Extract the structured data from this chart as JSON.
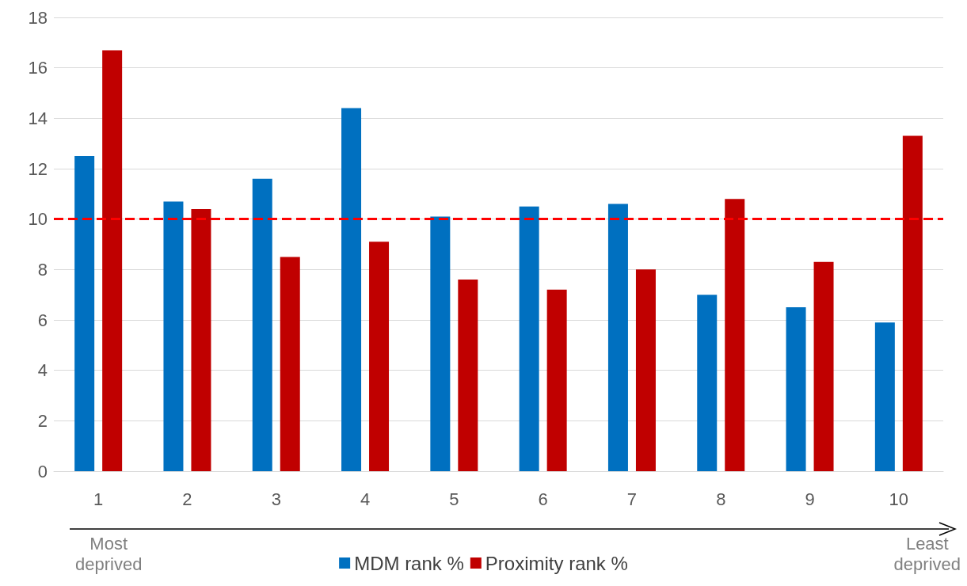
{
  "chart_data": {
    "type": "bar",
    "categories": [
      "1",
      "2",
      "3",
      "4",
      "5",
      "6",
      "7",
      "8",
      "9",
      "10"
    ],
    "series": [
      {
        "name": "MDM rank %",
        "color": "#0070c0",
        "values": [
          12.5,
          10.7,
          11.6,
          14.4,
          10.1,
          10.5,
          10.6,
          7.0,
          6.5,
          5.9
        ]
      },
      {
        "name": "Proximity rank %",
        "color": "#c00000",
        "values": [
          16.7,
          10.4,
          8.5,
          9.1,
          7.6,
          7.2,
          8.0,
          10.8,
          8.3,
          13.3
        ]
      }
    ],
    "ylim": [
      0,
      18
    ],
    "yticks": [
      0,
      2,
      4,
      6,
      8,
      10,
      12,
      14,
      16,
      18
    ],
    "grid": "y",
    "legend": "bottom",
    "ref_lines": [
      {
        "axis": "y",
        "value": 10,
        "color": "#ff0000",
        "line_style": "dashed"
      }
    ],
    "annotations": [
      "Most\ndeprived",
      "Least\ndeprived"
    ]
  }
}
